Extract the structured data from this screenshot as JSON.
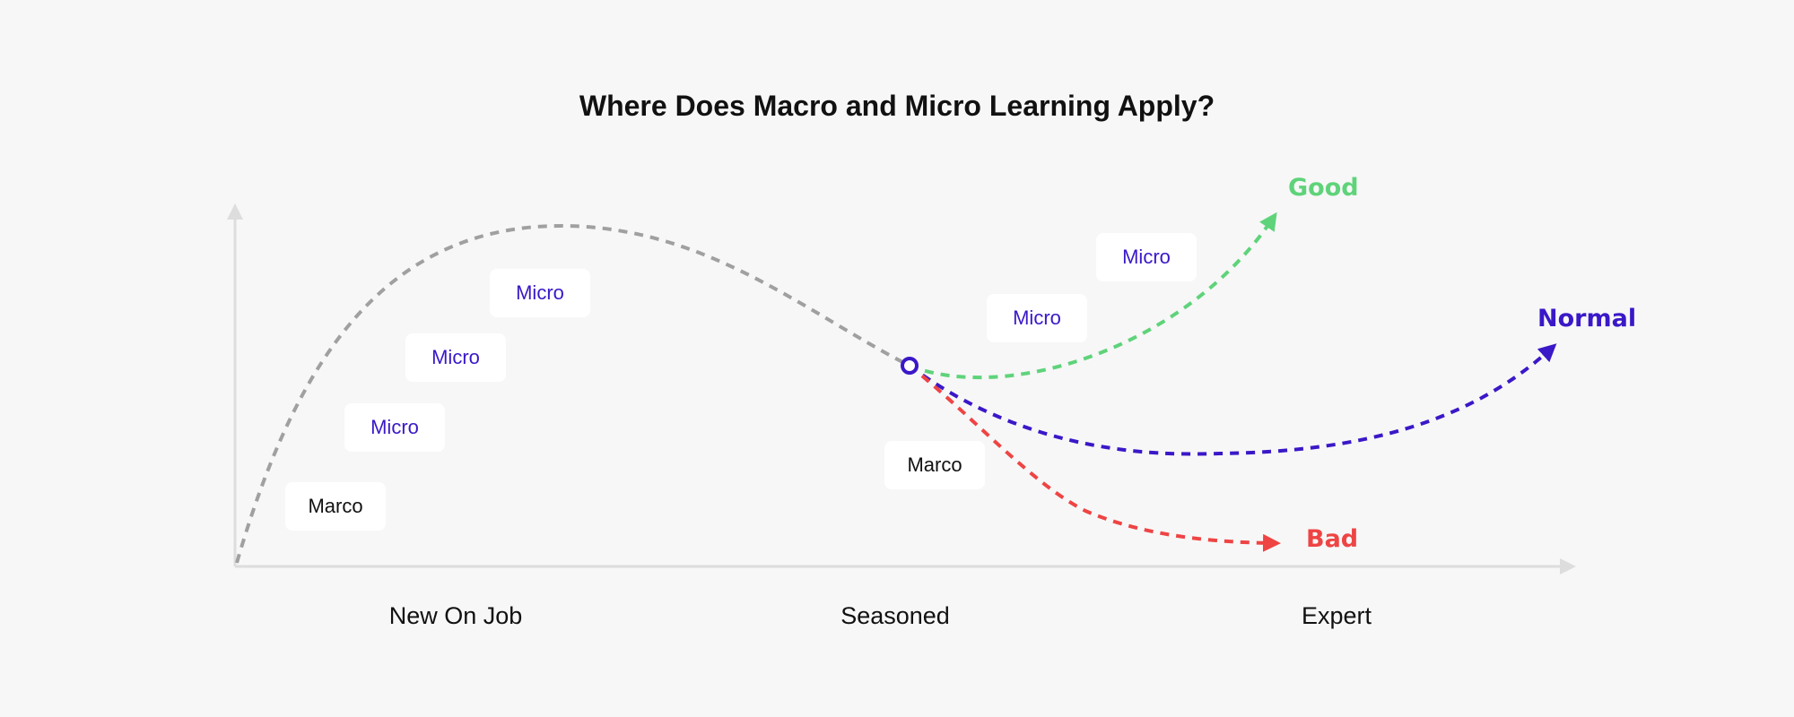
{
  "title": "Where Does Macro and Micro Learning Apply?",
  "x_axis_stages": [
    "New On Job",
    "Seasoned",
    "Expert"
  ],
  "boxes": {
    "left_macro": "Marco",
    "left_micro_1": "Micro",
    "left_micro_2": "Micro",
    "left_micro_3": "Micro",
    "mid_macro": "Marco",
    "mid_micro_1": "Micro",
    "mid_micro_2": "Micro"
  },
  "outcomes": {
    "good": {
      "label": "Good",
      "color": "#5fd37a"
    },
    "normal": {
      "label": "Normal",
      "color": "#3a18c8"
    },
    "bad": {
      "label": "Bad",
      "color": "#ef4444"
    }
  },
  "colors": {
    "main_curve": "#a0a0a0",
    "axis": "#dddddd",
    "micro_text": "#3a18c8",
    "macro_text": "#111111"
  }
}
